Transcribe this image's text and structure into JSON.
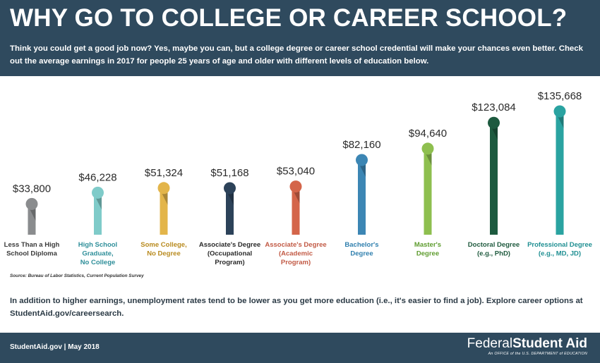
{
  "header": {
    "title": "WHY GO TO COLLEGE OR CAREER SCHOOL?",
    "intro": "Think you could get a good job now? Yes, maybe you can, but a college degree or career school credential will make your chances even better. Check out the average earnings in 2017 for people 25 years of age and older with different levels of education below.",
    "background_color": "#2f4a5e"
  },
  "chart_data": {
    "type": "bar",
    "style": "lollipop",
    "title": "",
    "xlabel": "",
    "ylabel": "",
    "ylim": [
      0,
      135668
    ],
    "grid": false,
    "legend": "none",
    "categories": [
      [
        "Less Than a High",
        "School Diploma"
      ],
      [
        "High School",
        "Graduate,",
        "No College"
      ],
      [
        "Some College,",
        "No Degree"
      ],
      [
        "Associate's Degree",
        "(Occupational",
        "Program)"
      ],
      [
        "Associate's Degree",
        "(Academic",
        "Program)"
      ],
      [
        "Bachelor's",
        "Degree"
      ],
      [
        "Master's",
        "Degree"
      ],
      [
        "Doctoral Degree",
        "(e.g., PhD)"
      ],
      [
        "Professional Degree",
        "(e.g., MD, JD)"
      ]
    ],
    "values": [
      33800,
      46228,
      51324,
      51168,
      53040,
      82160,
      94640,
      123084,
      135668
    ],
    "value_labels": [
      "$33,800",
      "$46,228",
      "$51,324",
      "$51,168",
      "$53,040",
      "$82,160",
      "$94,640",
      "$123,084",
      "$135,668"
    ],
    "colors": [
      "#8a8c8e",
      "#7fcbc9",
      "#e3b54a",
      "#2c4259",
      "#d4654a",
      "#3c86b4",
      "#8ebf4f",
      "#1d5a3f",
      "#2aa3a1"
    ],
    "label_colors": [
      "#3a3a3a",
      "#2f8f9a",
      "#b88a1e",
      "#2a2a2a",
      "#c25a45",
      "#2f7fae",
      "#5e9c2e",
      "#1f5a3e",
      "#1f8f92"
    ]
  },
  "source": "Source: Bureau of Labor Statistics, Current Population Survey",
  "footnote": "In addition to higher earnings, unemployment rates tend to be lower as you get more education (i.e., it's easier to find a job). Explore career options at StudentAid.gov/careersearch.",
  "footer": {
    "left": "StudentAid.gov | May 2018",
    "logo_light": "Federal",
    "logo_bold": "Student Aid",
    "logo_sub": "An OFFICE of the U.S. DEPARTMENT of EDUCATION"
  }
}
